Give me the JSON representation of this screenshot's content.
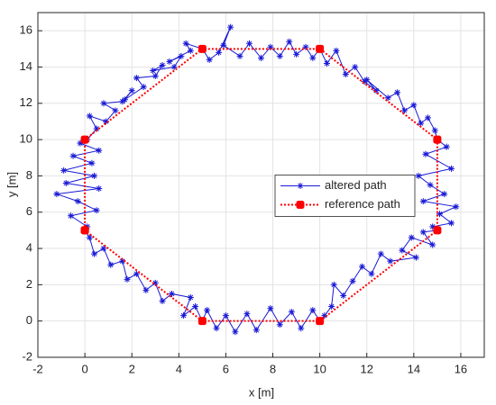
{
  "chart_data": {
    "type": "line",
    "xlabel": "x [m]",
    "ylabel": "y [m]",
    "xlim": [
      -2,
      17
    ],
    "ylim": [
      -2,
      17
    ],
    "xticks": [
      -2,
      0,
      2,
      4,
      6,
      8,
      10,
      12,
      14,
      16
    ],
    "yticks": [
      -2,
      0,
      2,
      4,
      6,
      8,
      10,
      12,
      14,
      16
    ],
    "grid": true,
    "legend_location": "east",
    "series": [
      {
        "name": "altered path",
        "color": "#1a1ad6",
        "marker": "star",
        "linestyle": "solid",
        "x": [
          0.1,
          -0.6,
          0.5,
          -0.3,
          -1.2,
          0.6,
          -0.8,
          0.4,
          -0.9,
          0.3,
          -0.5,
          0.6,
          -0.2,
          0.1,
          0.5,
          0.2,
          0.9,
          1.3,
          0.8,
          1.6,
          2.0,
          1.7,
          2.5,
          2.2,
          3.0,
          3.3,
          2.9,
          3.8,
          4.1,
          3.6,
          4.5,
          4.3,
          5.0,
          5.3,
          5.7,
          6.2,
          5.9,
          6.6,
          7.0,
          7.5,
          7.9,
          8.3,
          8.7,
          9.0,
          9.4,
          9.7,
          10.0,
          10.3,
          10.7,
          11.1,
          11.5,
          11.9,
          12.4,
          12.0,
          12.9,
          13.3,
          13.6,
          14.0,
          14.3,
          14.6,
          14.9,
          15.0,
          15.4,
          14.5,
          15.6,
          14.2,
          14.7,
          15.3,
          14.4,
          15.8,
          15.1,
          15.6,
          14.8,
          15.0,
          14.4,
          14.8,
          13.9,
          13.5,
          14.1,
          13.0,
          12.6,
          12.2,
          11.8,
          11.4,
          11.0,
          10.6,
          10.5,
          10.2,
          10.0,
          9.7,
          9.2,
          8.8,
          8.3,
          7.9,
          7.3,
          6.9,
          6.4,
          6.0,
          5.6,
          5.2,
          5.0,
          4.7,
          4.2,
          4.5,
          3.7,
          3.3,
          3.0,
          2.6,
          2.2,
          1.8,
          1.6,
          1.1,
          0.8,
          0.4,
          0.2,
          0.0
        ],
        "y": [
          5.2,
          5.8,
          6.1,
          6.6,
          7.0,
          7.3,
          7.6,
          8.0,
          8.3,
          8.7,
          9.1,
          9.4,
          9.8,
          10.0,
          10.6,
          11.3,
          11.0,
          11.6,
          12.0,
          12.1,
          12.7,
          12.2,
          12.9,
          13.4,
          13.5,
          14.1,
          13.8,
          14.0,
          14.6,
          14.3,
          14.9,
          15.3,
          15.0,
          14.4,
          14.8,
          16.2,
          15.2,
          14.6,
          15.3,
          14.5,
          15.1,
          14.6,
          15.4,
          14.7,
          15.1,
          14.5,
          15.0,
          14.2,
          14.9,
          13.6,
          14.0,
          13.2,
          12.7,
          13.3,
          12.3,
          12.6,
          11.6,
          11.9,
          10.9,
          11.2,
          10.5,
          10.0,
          9.6,
          9.2,
          8.4,
          8.0,
          7.5,
          7.0,
          6.6,
          6.3,
          5.9,
          5.4,
          5.2,
          5.0,
          4.9,
          4.2,
          4.6,
          3.9,
          3.5,
          3.3,
          3.7,
          2.6,
          3.0,
          2.2,
          1.4,
          2.0,
          0.8,
          0.3,
          0.0,
          0.6,
          -0.4,
          0.5,
          -0.2,
          0.7,
          -0.5,
          0.4,
          -0.6,
          0.3,
          -0.4,
          0.6,
          0.0,
          0.8,
          0.3,
          1.3,
          1.5,
          1.1,
          2.1,
          1.7,
          2.6,
          2.3,
          3.3,
          3.1,
          4.0,
          3.7,
          4.6,
          5.0
        ]
      },
      {
        "name": "reference path",
        "color": "#ff0000",
        "marker": "square",
        "linestyle": "dotted",
        "x": [
          0,
          0,
          5,
          10,
          15,
          15,
          10,
          5,
          0
        ],
        "y": [
          5,
          10,
          15,
          15,
          10,
          5,
          0,
          0,
          5
        ]
      }
    ]
  }
}
